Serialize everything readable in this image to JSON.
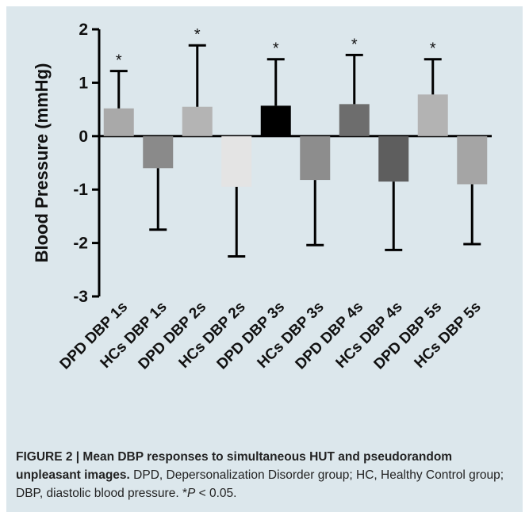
{
  "colors": {
    "panel_background": "#dce7ec",
    "axis": "#000000",
    "error_bar": "#000000",
    "caption_text": "#222222"
  },
  "chart_data": {
    "type": "bar",
    "title": "",
    "xlabel": "",
    "ylabel": "Blood Pressure (mmHg)",
    "ylim": [
      -3,
      2
    ],
    "yticks": [
      2,
      1,
      0,
      -1,
      -2,
      -3
    ],
    "grid": false,
    "categories": [
      "DPD DBP 1s",
      "HCs DBP 1s",
      "DPD DBP 2s",
      "HCs DBP 2s",
      "DPD DBP 3s",
      "HCs DBP 3s",
      "DPD DBP 4s",
      "HCs DBP 4s",
      "DPD DBP 5s",
      "HCs DBP 5s"
    ],
    "values": [
      0.52,
      -0.6,
      0.55,
      -0.95,
      0.57,
      -0.82,
      0.6,
      -0.85,
      0.78,
      -0.9
    ],
    "errors": [
      0.7,
      1.15,
      1.15,
      1.3,
      0.87,
      1.22,
      0.92,
      1.28,
      0.66,
      1.12
    ],
    "significance": [
      "*",
      "",
      "*",
      "",
      "*",
      "",
      "*",
      "",
      "*",
      ""
    ],
    "bar_colors": [
      "#a9a9a9",
      "#8a8a8a",
      "#b4b4b4",
      "#e4e4e4",
      "#000000",
      "#8d8d8d",
      "#6d6d6d",
      "#5e5e5e",
      "#b3b3b3",
      "#a5a5a5"
    ]
  },
  "caption": {
    "figure_label": "FIGURE 2 | Mean DBP responses to simultaneous HUT and pseudorandom unpleasant images.",
    "body": " DPD, Depersonalization Disorder group; HC, Healthy Control group; DBP, diastolic blood pressure. *",
    "p_symbol": "P",
    "p_rest": " < 0.05."
  }
}
